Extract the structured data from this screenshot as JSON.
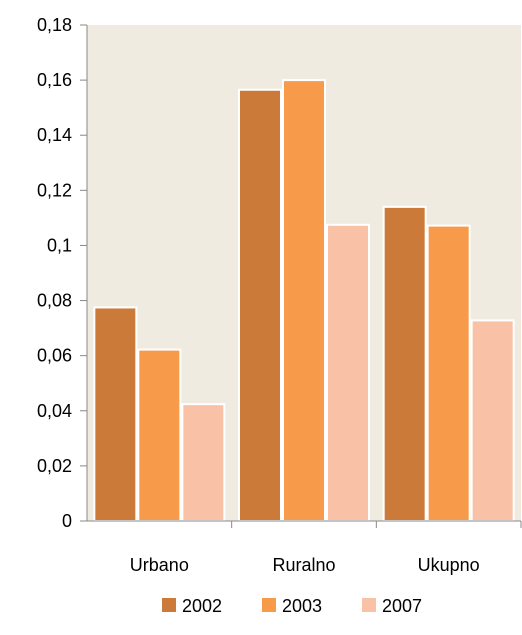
{
  "chart_data": {
    "type": "bar",
    "categories": [
      "Urbano",
      "Ruralno",
      "Ukupno"
    ],
    "series": [
      {
        "name": "2002",
        "values": [
          0.0775,
          0.1565,
          0.114
        ],
        "color": "#cc7a3a"
      },
      {
        "name": "2003",
        "values": [
          0.0622,
          0.16,
          0.1072
        ],
        "color": "#f79a4a"
      },
      {
        "name": "2007",
        "values": [
          0.0424,
          0.1075,
          0.0728
        ],
        "color": "#f9c2a6"
      }
    ],
    "y_ticks": [
      "0",
      "0,02",
      "0,04",
      "0,06",
      "0,08",
      "0,1",
      "0,12",
      "0,14",
      "0,16",
      "0,18"
    ],
    "ylim": [
      0,
      0.18
    ],
    "legend_position": "bottom",
    "plot_background": "#efebe0",
    "grid": false
  }
}
